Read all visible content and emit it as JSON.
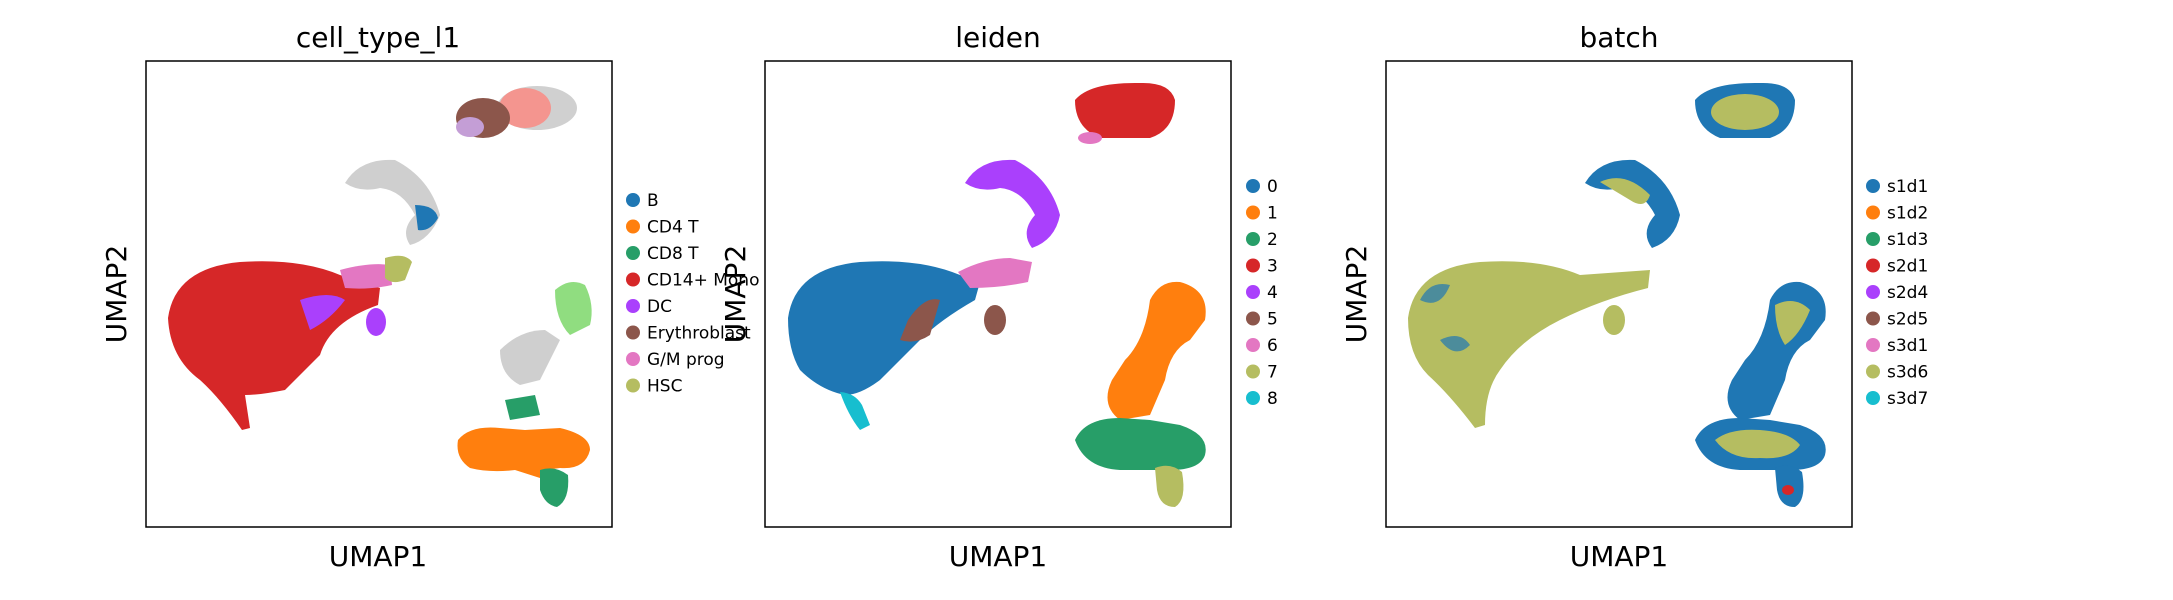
{
  "chart_data": [
    {
      "type": "scatter",
      "title": "cell_type_l1",
      "xlabel": "UMAP1",
      "ylabel": "UMAP2",
      "grid": false,
      "legend_placement": "right",
      "series": [
        {
          "name": "B",
          "color": "#1f77b4"
        },
        {
          "name": "CD4 T",
          "color": "#ff7f0e"
        },
        {
          "name": "CD8 T",
          "color": "#279e68"
        },
        {
          "name": "CD14+ Mono",
          "color": "#d62728"
        },
        {
          "name": "DC",
          "color": "#aa40fc"
        },
        {
          "name": "Erythroblast",
          "color": "#8c564b"
        },
        {
          "name": "G/M prog",
          "color": "#e377c2"
        },
        {
          "name": "HSC",
          "color": "#b5bd61"
        }
      ]
    },
    {
      "type": "scatter",
      "title": "leiden",
      "xlabel": "UMAP1",
      "ylabel": "UMAP2",
      "grid": false,
      "legend_placement": "right",
      "series": [
        {
          "name": "0",
          "color": "#1f77b4"
        },
        {
          "name": "1",
          "color": "#ff7f0e"
        },
        {
          "name": "2",
          "color": "#279e68"
        },
        {
          "name": "3",
          "color": "#d62728"
        },
        {
          "name": "4",
          "color": "#aa40fc"
        },
        {
          "name": "5",
          "color": "#8c564b"
        },
        {
          "name": "6",
          "color": "#e377c2"
        },
        {
          "name": "7",
          "color": "#b5bd61"
        },
        {
          "name": "8",
          "color": "#17becf"
        }
      ]
    },
    {
      "type": "scatter",
      "title": "batch",
      "xlabel": "UMAP1",
      "ylabel": "UMAP2",
      "grid": false,
      "legend_placement": "right",
      "series": [
        {
          "name": "s1d1",
          "color": "#1f77b4"
        },
        {
          "name": "s1d2",
          "color": "#ff7f0e"
        },
        {
          "name": "s1d3",
          "color": "#279e68"
        },
        {
          "name": "s2d1",
          "color": "#d62728"
        },
        {
          "name": "s2d4",
          "color": "#aa40fc"
        },
        {
          "name": "s2d5",
          "color": "#8c564b"
        },
        {
          "name": "s3d1",
          "color": "#e377c2"
        },
        {
          "name": "s3d6",
          "color": "#b5bd61"
        },
        {
          "name": "s3d7",
          "color": "#17becf"
        }
      ]
    }
  ]
}
